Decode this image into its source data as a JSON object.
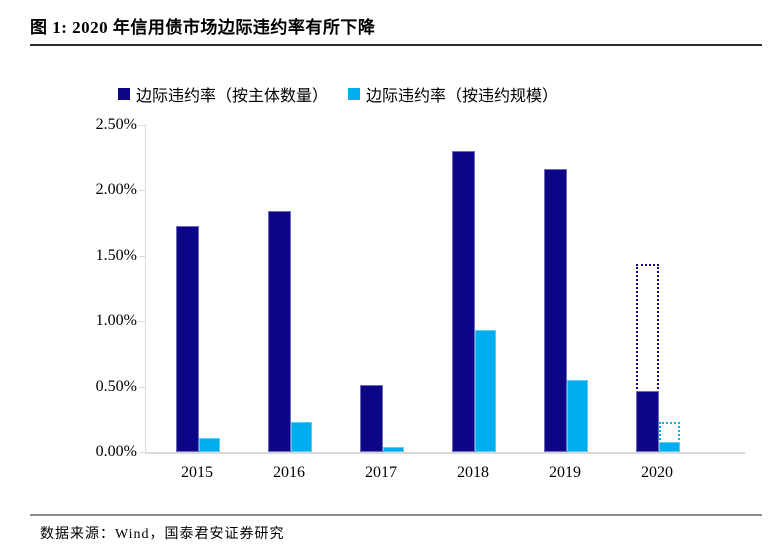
{
  "figure": {
    "title": "图 1:  2020 年信用债市场边际违约率有所下降",
    "source": "数据来源：Wind，国泰君安证券研究"
  },
  "legend": [
    {
      "label": "边际违约率（按主体数量）",
      "color": "#0d0686"
    },
    {
      "label": "边际违约率（按违约规模）",
      "color": "#00aeef"
    }
  ],
  "colors": {
    "navy": "#0d0686",
    "cyan": "#00aeef",
    "axis_gray": "#d9d9d9",
    "rule_dark": "#2b2b2b",
    "rule_gray": "#8c8c8c"
  },
  "chart_data": {
    "type": "bar",
    "title": "图 1:  2020 年信用债市场边际违约率有所下降",
    "categories": [
      "2015",
      "2016",
      "2017",
      "2018",
      "2019",
      "2020"
    ],
    "series": [
      {
        "key": "count-solid",
        "name": "边际违约率（按主体数量）",
        "color": "#0d0686",
        "style": "solid",
        "values": [
          1.73,
          1.84,
          0.51,
          2.3,
          2.16,
          0.47
        ]
      },
      {
        "key": "scale-solid",
        "name": "边际违约率（按违约规模）",
        "color": "#00aeef",
        "style": "solid",
        "values": [
          0.11,
          0.23,
          0.04,
          0.93,
          0.55,
          0.08
        ]
      },
      {
        "key": "count-dotted",
        "name": "边际违约率（按主体数量）·虚线框",
        "color": "#0d0686",
        "style": "dotted",
        "values": [
          null,
          null,
          null,
          null,
          null,
          1.44
        ]
      },
      {
        "key": "scale-dotted",
        "name": "边际违约率（按违约规模）·虚线框",
        "color": "#00aeef",
        "style": "dotted",
        "values": [
          null,
          null,
          null,
          null,
          null,
          0.23
        ]
      }
    ],
    "xlabel": "",
    "ylabel": "",
    "ylim": [
      0,
      2.5
    ],
    "ytick_values": [
      0,
      0.5,
      1.0,
      1.5,
      2.0,
      2.5
    ],
    "ytick_labels": [
      "0.00%",
      "0.50%",
      "1.00%",
      "1.50%",
      "2.00%",
      "2.50%"
    ],
    "grid": false,
    "legend_position": "top"
  }
}
